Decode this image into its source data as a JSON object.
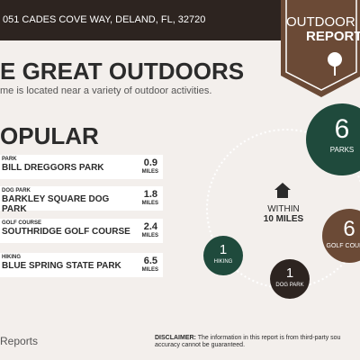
{
  "header": {
    "address": "051 CADES COVE WAY, DELAND, FL, 32720",
    "badge_line1": "OUTDOOR",
    "badge_line2": "REPORT"
  },
  "section": {
    "title": "E GREAT OUTDOORS",
    "subtitle": "me is located near a variety of outdoor activities."
  },
  "popular": {
    "title": "OPULAR",
    "items": [
      {
        "category": "PARK",
        "name": "BILL DREGGORS PARK",
        "distance": 0.9,
        "unit": "MILES"
      },
      {
        "category": "DOG PARK",
        "name": "BARKLEY SQUARE DOG PARK",
        "distance": 1.8,
        "unit": "MILES"
      },
      {
        "category": "GOLF COURSE",
        "name": "SOUTHRIDGE GOLF COURSE",
        "distance": 2.4,
        "unit": "MILES"
      },
      {
        "category": "HIKING",
        "name": "BLUE SPRING STATE PARK",
        "distance": 6.5,
        "unit": "MILES"
      }
    ]
  },
  "radius": {
    "line1": "WITHIN",
    "line2": "10 MILES"
  },
  "counts": [
    {
      "count": 6,
      "label": "PARKS"
    },
    {
      "count": 6,
      "label": "GOLF COURSE"
    },
    {
      "count": 1,
      "label": "HIKING"
    },
    {
      "count": 1,
      "label": "DOG PARK"
    }
  ],
  "footer": {
    "brand": "Reports",
    "disclaimer_label": "DISCLAIMER:",
    "disclaimer_text": "The information in this report is from third-party sou",
    "disclaimer_text2": "accuracy cannot be guaranteed."
  }
}
